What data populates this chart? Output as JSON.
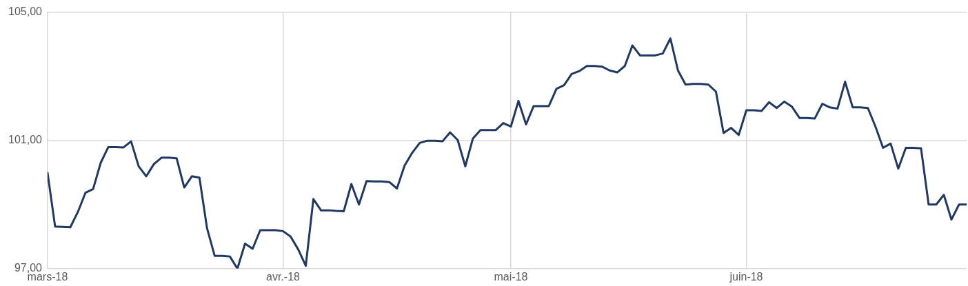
{
  "chart_data": {
    "type": "line",
    "x": [
      "2018-03-01",
      "2018-03-02",
      "2018-03-03",
      "2018-03-04",
      "2018-03-05",
      "2018-03-06",
      "2018-03-07",
      "2018-03-08",
      "2018-03-09",
      "2018-03-10",
      "2018-03-11",
      "2018-03-12",
      "2018-03-13",
      "2018-03-14",
      "2018-03-15",
      "2018-03-16",
      "2018-03-17",
      "2018-03-18",
      "2018-03-19",
      "2018-03-20",
      "2018-03-21",
      "2018-03-22",
      "2018-03-23",
      "2018-03-24",
      "2018-03-25",
      "2018-03-26",
      "2018-03-27",
      "2018-03-28",
      "2018-03-29",
      "2018-03-30",
      "2018-03-31",
      "2018-04-01",
      "2018-04-02",
      "2018-04-03",
      "2018-04-04",
      "2018-04-05",
      "2018-04-06",
      "2018-04-07",
      "2018-04-08",
      "2018-04-09",
      "2018-04-10",
      "2018-04-11",
      "2018-04-12",
      "2018-04-13",
      "2018-04-14",
      "2018-04-15",
      "2018-04-16",
      "2018-04-17",
      "2018-04-18",
      "2018-04-19",
      "2018-04-20",
      "2018-04-21",
      "2018-04-22",
      "2018-04-23",
      "2018-04-24",
      "2018-04-25",
      "2018-04-26",
      "2018-04-27",
      "2018-04-28",
      "2018-04-29",
      "2018-04-30",
      "2018-05-01",
      "2018-05-02",
      "2018-05-03",
      "2018-05-04",
      "2018-05-05",
      "2018-05-06",
      "2018-05-07",
      "2018-05-08",
      "2018-05-09",
      "2018-05-10",
      "2018-05-11",
      "2018-05-12",
      "2018-05-13",
      "2018-05-14",
      "2018-05-15",
      "2018-05-16",
      "2018-05-17",
      "2018-05-18",
      "2018-05-19",
      "2018-05-20",
      "2018-05-21",
      "2018-05-22",
      "2018-05-23",
      "2018-05-24",
      "2018-05-25",
      "2018-05-26",
      "2018-05-27",
      "2018-05-28",
      "2018-05-29",
      "2018-05-30",
      "2018-05-31",
      "2018-06-01",
      "2018-06-02",
      "2018-06-03",
      "2018-06-04",
      "2018-06-05",
      "2018-06-06",
      "2018-06-07",
      "2018-06-08",
      "2018-06-09",
      "2018-06-10",
      "2018-06-11",
      "2018-06-12",
      "2018-06-13",
      "2018-06-14",
      "2018-06-15",
      "2018-06-16",
      "2018-06-17",
      "2018-06-18",
      "2018-06-19",
      "2018-06-20",
      "2018-06-21",
      "2018-06-22",
      "2018-06-23",
      "2018-06-24",
      "2018-06-25",
      "2018-06-26",
      "2018-06-27",
      "2018-06-28",
      "2018-06-29",
      "2018-06-30"
    ],
    "series": [
      {
        "color": "#1f3864",
        "values": [
          99.99,
          98.31,
          98.3,
          98.29,
          98.77,
          99.37,
          99.48,
          100.3,
          100.79,
          100.79,
          100.78,
          100.97,
          100.19,
          99.88,
          100.26,
          100.46,
          100.46,
          100.44,
          99.53,
          99.88,
          99.84,
          98.26,
          97.4,
          97.4,
          97.38,
          97.0,
          97.78,
          97.62,
          98.2,
          98.2,
          98.2,
          98.17,
          98.0,
          97.6,
          97.09,
          99.17,
          98.82,
          98.82,
          98.8,
          98.79,
          99.64,
          99.0,
          99.73,
          99.72,
          99.72,
          99.7,
          99.5,
          100.21,
          100.61,
          100.92,
          100.99,
          100.99,
          100.97,
          101.25,
          101.01,
          100.19,
          101.06,
          101.32,
          101.32,
          101.32,
          101.54,
          101.43,
          102.23,
          101.5,
          102.07,
          102.07,
          102.07,
          102.61,
          102.72,
          103.07,
          103.16,
          103.32,
          103.32,
          103.3,
          103.18,
          103.12,
          103.32,
          103.96,
          103.65,
          103.65,
          103.65,
          103.71,
          104.18,
          103.18,
          102.74,
          102.76,
          102.76,
          102.74,
          102.52,
          101.23,
          101.39,
          101.17,
          101.94,
          101.94,
          101.92,
          102.19,
          102.01,
          102.21,
          102.05,
          101.7,
          101.7,
          101.68,
          102.14,
          102.03,
          101.99,
          102.83,
          102.03,
          102.03,
          102.01,
          101.43,
          100.77,
          100.9,
          100.12,
          100.77,
          100.77,
          100.75,
          99.0,
          99.0,
          99.3,
          98.53,
          99.0,
          99.0
        ]
      }
    ],
    "xlim": [
      "2018-03-01",
      "2018-06-30"
    ],
    "xticks": [
      {
        "value": "2018-03-01",
        "label": "mars-18"
      },
      {
        "value": "2018-04-01",
        "label": "avr.-18"
      },
      {
        "value": "2018-05-01",
        "label": "mai-18"
      },
      {
        "value": "2018-06-01",
        "label": "juin-18"
      }
    ],
    "ylim": [
      97,
      105
    ],
    "yticks": [
      {
        "value": 97,
        "label": "97,00"
      },
      {
        "value": 101,
        "label": "101,00"
      },
      {
        "value": 105,
        "label": "105,00"
      }
    ],
    "grid": true,
    "legend": false,
    "marker": "none",
    "line_style": "solid"
  }
}
